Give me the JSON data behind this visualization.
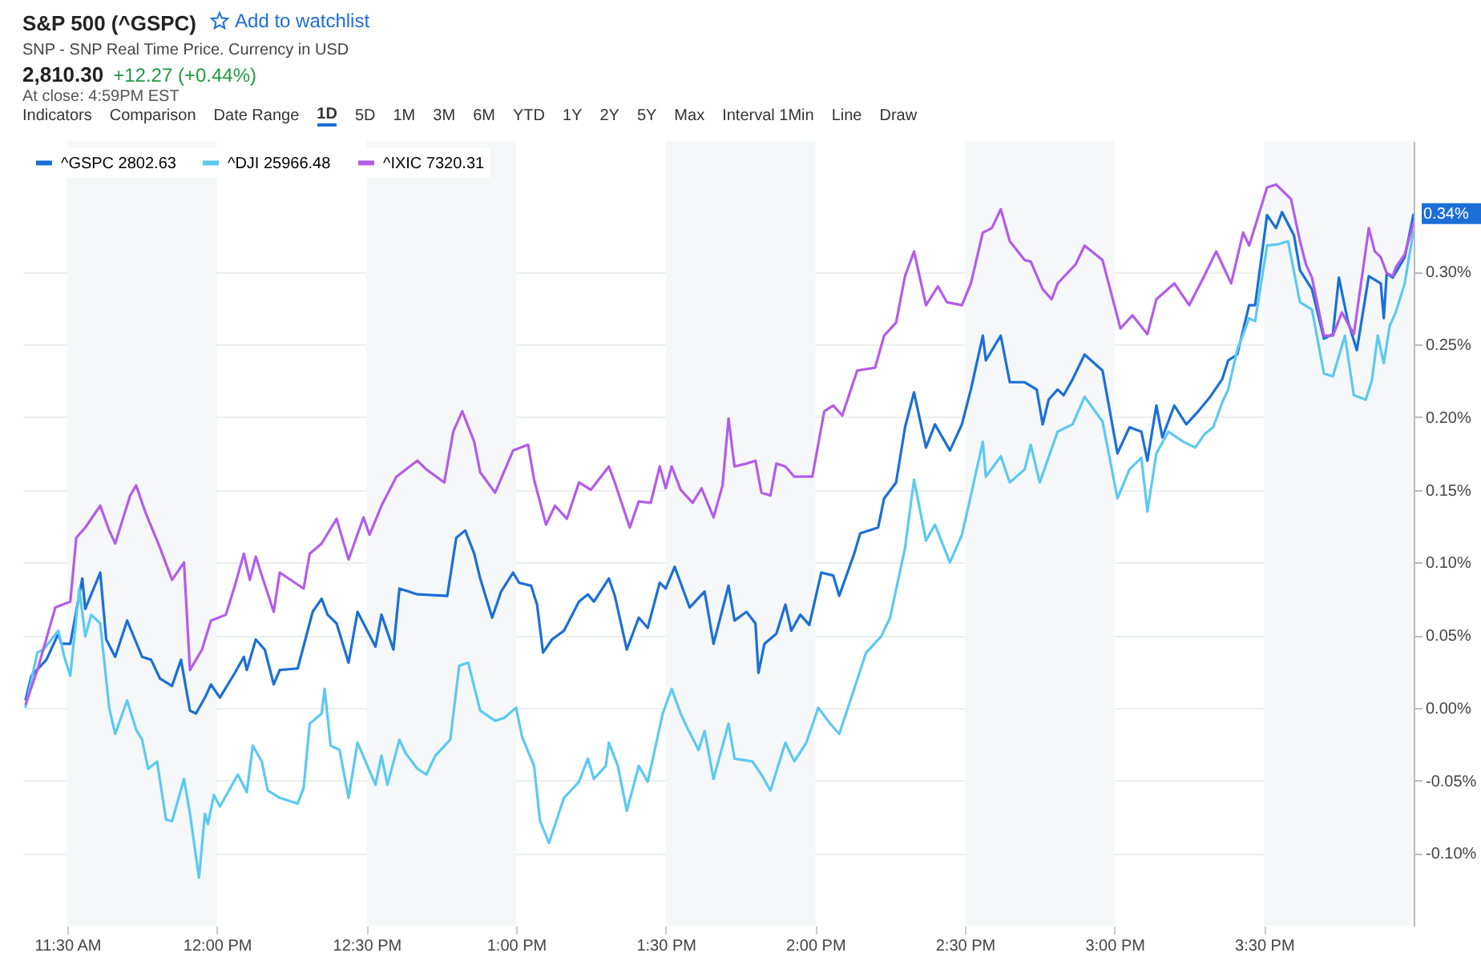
{
  "chart_data": {
    "type": "line",
    "title": "S&P 500 (^GSPC)",
    "subtitle": "SNP - SNP Real Time Price. Currency in USD",
    "annotations": [
      "2,810.30",
      "+12.27 (+0.44%)",
      "At close: 4:59PM EST",
      "Add to watchlist",
      "Indicators",
      "Comparison",
      "Date Range",
      "1D",
      "5D",
      "1M",
      "3M",
      "6M",
      "YTD",
      "1Y",
      "2Y",
      "5Y",
      "Max",
      "Interval 1Min",
      "Line",
      "Draw",
      {
        "text": "0.34%",
        "x": 16.0,
        "y": 0.34
      }
    ],
    "xlim": [
      11.35,
      16.0
    ],
    "ylim": [
      -0.15,
      0.39
    ],
    "xticks": [
      {
        "value": 11.5,
        "label": "11:30 AM"
      },
      {
        "value": 12,
        "label": "12:00 PM"
      },
      {
        "value": 12.5,
        "label": "12:30 PM"
      },
      {
        "value": 13,
        "label": "1:00 PM"
      },
      {
        "value": 13.5,
        "label": "1:30 PM"
      },
      {
        "value": 14,
        "label": "2:00 PM"
      },
      {
        "value": 14.5,
        "label": "2:30 PM"
      },
      {
        "value": 15,
        "label": "3:00 PM"
      },
      {
        "value": 15.5,
        "label": "3:30 PM"
      }
    ],
    "yticks": [
      {
        "value": -0.1,
        "label": "-0.10%"
      },
      {
        "value": -0.05,
        "label": "-0.05%"
      },
      {
        "value": 0,
        "label": "0.00%"
      },
      {
        "value": 0.05,
        "label": "0.05%"
      },
      {
        "value": 0.1,
        "label": "0.10%"
      },
      {
        "value": 0.15,
        "label": "0.15%"
      },
      {
        "value": 0.2,
        "label": "0.20%"
      },
      {
        "value": 0.25,
        "label": "0.25%"
      },
      {
        "value": 0.3,
        "label": "0.30%"
      }
    ],
    "grid": "y",
    "legend": "top left",
    "bands": [
      {
        "axis": "x",
        "from": 11.5,
        "to": 12,
        "color": "#f5f7f8"
      },
      {
        "axis": "x",
        "from": 12.5,
        "to": 13,
        "color": "#f5f7f8"
      },
      {
        "axis": "x",
        "from": 13.5,
        "to": 14,
        "color": "#f5f7f8"
      },
      {
        "axis": "x",
        "from": 14.5,
        "to": 15,
        "color": "#f5f7f8"
      },
      {
        "axis": "x",
        "from": 15.5,
        "to": 16,
        "color": "#f5f7f8"
      }
    ],
    "series": [
      {
        "name": "^GSPC 2802.63",
        "color": "#1b6fd6",
        "x": [
          11.36,
          11.38,
          11.43,
          11.47,
          11.48,
          11.51,
          11.55,
          11.56,
          11.61,
          11.63,
          11.66,
          11.7,
          11.75,
          11.78,
          11.81,
          11.85,
          11.88,
          11.91,
          11.93,
          11.96,
          11.98,
          12.01,
          12.06,
          12.09,
          12.1,
          12.13,
          12.16,
          12.19,
          12.21,
          12.27,
          12.32,
          12.35,
          12.37,
          12.4,
          12.44,
          12.47,
          12.53,
          12.55,
          12.59,
          12.61,
          12.64,
          12.67,
          12.77,
          12.8,
          12.83,
          12.86,
          12.88,
          12.92,
          12.95,
          12.99,
          13.01,
          13.05,
          13.07,
          13.09,
          13.12,
          13.16,
          13.21,
          13.24,
          13.26,
          13.31,
          13.33,
          13.37,
          13.41,
          13.44,
          13.48,
          13.5,
          13.53,
          13.58,
          13.63,
          13.66,
          13.71,
          13.73,
          13.77,
          13.8,
          13.81,
          13.83,
          13.87,
          13.9,
          13.92,
          13.95,
          13.98,
          14.02,
          14.06,
          14.08,
          14.13,
          14.15,
          14.21,
          14.23,
          14.27,
          14.3,
          14.33,
          14.37,
          14.4,
          14.45,
          14.49,
          14.52,
          14.56,
          14.57,
          14.62,
          14.65,
          14.7,
          14.74,
          14.76,
          14.78,
          14.81,
          14.83,
          14.86,
          14.9,
          14.96,
          15.01,
          15.05,
          15.09,
          15.11,
          15.14,
          15.16,
          15.2,
          15.24,
          15.28,
          15.32,
          15.36,
          15.38,
          15.41,
          15.45,
          15.47,
          15.51,
          15.54,
          15.56,
          15.6,
          15.62,
          15.66,
          15.7,
          15.73,
          15.75,
          15.78,
          15.81,
          15.85,
          15.89,
          15.9,
          15.91,
          15.93,
          15.97,
          16.0
        ],
        "values": [
          0.005,
          0.022,
          0.033,
          0.051,
          0.044,
          0.044,
          0.089,
          0.068,
          0.093,
          0.047,
          0.035,
          0.06,
          0.035,
          0.033,
          0.02,
          0.015,
          0.033,
          -0.002,
          -0.004,
          0.007,
          0.016,
          0.007,
          0.024,
          0.035,
          0.026,
          0.047,
          0.04,
          0.016,
          0.026,
          0.027,
          0.066,
          0.075,
          0.064,
          0.058,
          0.031,
          0.066,
          0.042,
          0.064,
          0.04,
          0.082,
          0.08,
          0.078,
          0.077,
          0.117,
          0.122,
          0.106,
          0.089,
          0.062,
          0.08,
          0.093,
          0.086,
          0.084,
          0.071,
          0.038,
          0.047,
          0.053,
          0.073,
          0.078,
          0.073,
          0.089,
          0.077,
          0.04,
          0.062,
          0.055,
          0.086,
          0.082,
          0.097,
          0.069,
          0.08,
          0.044,
          0.084,
          0.06,
          0.066,
          0.058,
          0.024,
          0.044,
          0.051,
          0.071,
          0.053,
          0.064,
          0.057,
          0.093,
          0.091,
          0.077,
          0.106,
          0.12,
          0.124,
          0.144,
          0.155,
          0.193,
          0.217,
          0.179,
          0.195,
          0.177,
          0.195,
          0.219,
          0.256,
          0.239,
          0.256,
          0.224,
          0.224,
          0.219,
          0.195,
          0.212,
          0.219,
          0.215,
          0.226,
          0.243,
          0.232,
          0.175,
          0.193,
          0.19,
          0.17,
          0.208,
          0.186,
          0.208,
          0.195,
          0.204,
          0.214,
          0.226,
          0.239,
          0.243,
          0.277,
          0.277,
          0.339,
          0.33,
          0.341,
          0.325,
          0.301,
          0.288,
          0.254,
          0.257,
          0.296,
          0.266,
          0.246,
          0.297,
          0.292,
          0.268,
          0.299,
          0.296,
          0.31,
          0.34
        ]
      },
      {
        "name": "^DJI 25966.48",
        "color": "#5cc9f0",
        "x": [
          11.36,
          11.4,
          11.42,
          11.47,
          11.49,
          11.51,
          11.54,
          11.56,
          11.58,
          11.61,
          11.64,
          11.66,
          11.7,
          11.73,
          11.75,
          11.77,
          11.8,
          11.83,
          11.85,
          11.89,
          11.91,
          11.94,
          11.96,
          11.97,
          11.99,
          12.01,
          12.07,
          12.1,
          12.12,
          12.15,
          12.17,
          12.21,
          12.27,
          12.29,
          12.31,
          12.35,
          12.36,
          12.38,
          12.41,
          12.44,
          12.47,
          12.53,
          12.55,
          12.57,
          12.61,
          12.63,
          12.67,
          12.7,
          12.73,
          12.78,
          12.81,
          12.84,
          12.88,
          12.93,
          12.96,
          13.0,
          13.02,
          13.06,
          13.08,
          13.11,
          13.16,
          13.21,
          13.24,
          13.26,
          13.3,
          13.31,
          13.34,
          13.37,
          13.41,
          13.44,
          13.49,
          13.52,
          13.55,
          13.57,
          13.61,
          13.63,
          13.66,
          13.71,
          13.73,
          13.79,
          13.82,
          13.85,
          13.9,
          13.93,
          13.97,
          14.01,
          14.05,
          14.08,
          14.13,
          14.17,
          14.22,
          14.25,
          14.3,
          14.33,
          14.37,
          14.4,
          14.45,
          14.49,
          14.52,
          14.56,
          14.57,
          14.62,
          14.65,
          14.7,
          14.72,
          14.75,
          14.81,
          14.86,
          14.9,
          14.96,
          15.01,
          15.05,
          15.09,
          15.11,
          15.14,
          15.18,
          15.23,
          15.27,
          15.3,
          15.33,
          15.36,
          15.38,
          15.41,
          15.45,
          15.47,
          15.51,
          15.55,
          15.58,
          15.62,
          15.66,
          15.7,
          15.73,
          15.77,
          15.8,
          15.84,
          15.86,
          15.88,
          15.9,
          15.92,
          15.94,
          15.97,
          16.0
        ],
        "values": [
          0.0,
          0.038,
          0.04,
          0.053,
          0.035,
          0.022,
          0.082,
          0.049,
          0.064,
          0.058,
          0.0,
          -0.018,
          0.005,
          -0.015,
          -0.022,
          -0.042,
          -0.037,
          -0.077,
          -0.078,
          -0.049,
          -0.073,
          -0.117,
          -0.073,
          -0.08,
          -0.06,
          -0.068,
          -0.046,
          -0.058,
          -0.026,
          -0.037,
          -0.057,
          -0.062,
          -0.066,
          -0.055,
          -0.011,
          -0.004,
          0.013,
          -0.026,
          -0.029,
          -0.062,
          -0.024,
          -0.053,
          -0.033,
          -0.053,
          -0.022,
          -0.031,
          -0.042,
          -0.046,
          -0.033,
          -0.022,
          0.029,
          0.031,
          -0.002,
          -0.009,
          -0.007,
          0.0,
          -0.02,
          -0.04,
          -0.078,
          -0.093,
          -0.062,
          -0.051,
          -0.035,
          -0.049,
          -0.04,
          -0.024,
          -0.04,
          -0.071,
          -0.04,
          -0.051,
          -0.004,
          0.013,
          -0.004,
          -0.013,
          -0.029,
          -0.016,
          -0.049,
          -0.011,
          -0.035,
          -0.037,
          -0.046,
          -0.057,
          -0.024,
          -0.037,
          -0.024,
          0.0,
          -0.011,
          -0.018,
          0.013,
          0.038,
          0.049,
          0.062,
          0.11,
          0.157,
          0.115,
          0.126,
          0.1,
          0.119,
          0.146,
          0.183,
          0.159,
          0.173,
          0.155,
          0.164,
          0.181,
          0.155,
          0.19,
          0.195,
          0.214,
          0.197,
          0.144,
          0.164,
          0.172,
          0.135,
          0.175,
          0.19,
          0.183,
          0.179,
          0.188,
          0.193,
          0.21,
          0.219,
          0.246,
          0.268,
          0.266,
          0.318,
          0.319,
          0.321,
          0.279,
          0.274,
          0.23,
          0.228,
          0.256,
          0.215,
          0.212,
          0.225,
          0.256,
          0.237,
          0.263,
          0.272,
          0.292,
          0.329
        ]
      },
      {
        "name": "^IXIC 7320.31",
        "color": "#b35ce9",
        "x": [
          11.36,
          11.4,
          11.46,
          11.51,
          11.53,
          11.56,
          11.61,
          11.64,
          11.66,
          11.71,
          11.73,
          11.76,
          11.81,
          11.85,
          11.89,
          11.91,
          11.95,
          11.98,
          12.03,
          12.06,
          12.09,
          12.11,
          12.13,
          12.15,
          12.19,
          12.21,
          12.29,
          12.31,
          12.35,
          12.4,
          12.44,
          12.49,
          12.51,
          12.55,
          12.6,
          12.67,
          12.7,
          12.76,
          12.79,
          12.82,
          12.86,
          12.88,
          12.93,
          12.99,
          13.04,
          13.06,
          13.1,
          13.13,
          13.17,
          13.21,
          13.25,
          13.31,
          13.33,
          13.38,
          13.41,
          13.45,
          13.48,
          13.5,
          13.52,
          13.55,
          13.59,
          13.62,
          13.66,
          13.69,
          13.71,
          13.73,
          13.77,
          13.8,
          13.82,
          13.85,
          13.87,
          13.9,
          13.93,
          13.99,
          14.03,
          14.06,
          14.09,
          14.14,
          14.2,
          14.23,
          14.27,
          14.3,
          14.33,
          14.37,
          14.41,
          14.44,
          14.49,
          14.52,
          14.56,
          14.59,
          14.62,
          14.65,
          14.7,
          14.72,
          14.76,
          14.79,
          14.81,
          14.87,
          14.9,
          14.96,
          15.02,
          15.06,
          15.11,
          15.14,
          15.2,
          15.25,
          15.3,
          15.34,
          15.39,
          15.43,
          15.45,
          15.51,
          15.54,
          15.59,
          15.62,
          15.64,
          15.66,
          15.7,
          15.73,
          15.76,
          15.8,
          15.85,
          15.87,
          15.89,
          15.91,
          15.93,
          15.94,
          15.97,
          16.0
        ],
        "values": [
          0.002,
          0.026,
          0.069,
          0.073,
          0.117,
          0.124,
          0.139,
          0.122,
          0.113,
          0.146,
          0.153,
          0.135,
          0.11,
          0.088,
          0.1,
          0.026,
          0.04,
          0.06,
          0.064,
          0.084,
          0.106,
          0.088,
          0.104,
          0.091,
          0.066,
          0.093,
          0.082,
          0.106,
          0.113,
          0.13,
          0.102,
          0.131,
          0.119,
          0.139,
          0.159,
          0.17,
          0.164,
          0.155,
          0.19,
          0.204,
          0.183,
          0.162,
          0.148,
          0.177,
          0.181,
          0.157,
          0.126,
          0.139,
          0.13,
          0.155,
          0.15,
          0.166,
          0.155,
          0.124,
          0.142,
          0.141,
          0.166,
          0.151,
          0.166,
          0.15,
          0.141,
          0.151,
          0.131,
          0.153,
          0.199,
          0.166,
          0.168,
          0.17,
          0.148,
          0.146,
          0.168,
          0.166,
          0.159,
          0.159,
          0.204,
          0.208,
          0.201,
          0.232,
          0.234,
          0.256,
          0.265,
          0.297,
          0.314,
          0.277,
          0.29,
          0.279,
          0.277,
          0.292,
          0.327,
          0.33,
          0.343,
          0.321,
          0.308,
          0.307,
          0.288,
          0.281,
          0.292,
          0.305,
          0.318,
          0.308,
          0.261,
          0.27,
          0.257,
          0.281,
          0.292,
          0.277,
          0.297,
          0.314,
          0.292,
          0.327,
          0.318,
          0.358,
          0.36,
          0.35,
          0.321,
          0.305,
          0.296,
          0.256,
          0.256,
          0.272,
          0.257,
          0.33,
          0.314,
          0.31,
          0.299,
          0.297,
          0.303,
          0.312,
          0.334
        ]
      }
    ]
  }
}
